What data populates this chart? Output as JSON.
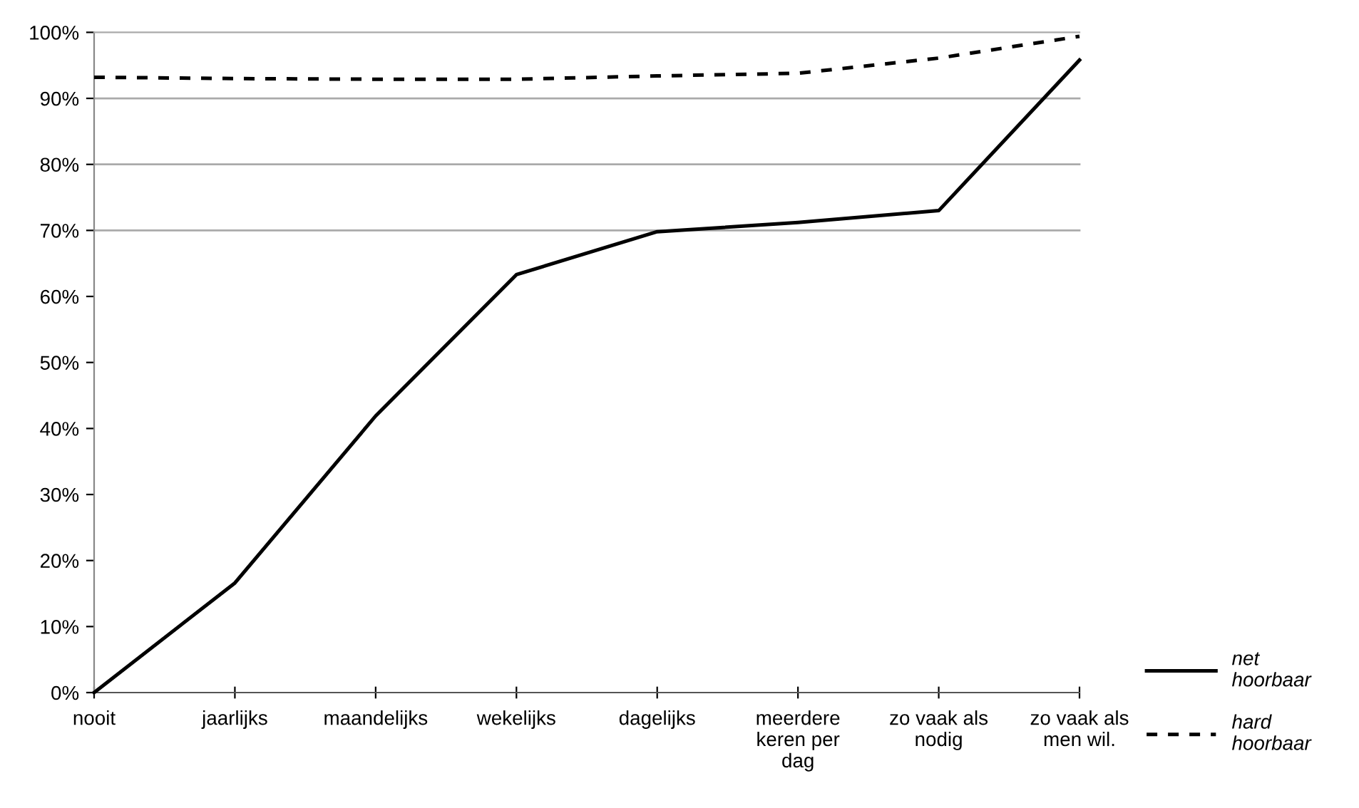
{
  "chart_data": {
    "type": "line",
    "categories": [
      "nooit",
      "jaarlijks",
      "maandelijks",
      "wekelijks",
      "dagelijks",
      "meerdere keren per dag",
      "zo vaak als nodig",
      "zo vaak als men wil."
    ],
    "series": [
      {
        "name": "net hoorbaar",
        "color": "#000000",
        "line_style": "solid",
        "values": [
          0,
          16.6,
          41.9,
          63.3,
          69.8,
          71.2,
          73.0,
          95.8
        ]
      },
      {
        "name": "hard hoorbaar",
        "color": "#000000",
        "line_style": "dotted",
        "values": [
          93.2,
          93.0,
          92.9,
          92.9,
          93.4,
          93.8,
          96.1,
          99.4
        ]
      }
    ],
    "ylim": [
      0,
      100
    ],
    "yticks": [
      {
        "value": 0,
        "label": "0%"
      },
      {
        "value": 10,
        "label": "10%"
      },
      {
        "value": 20,
        "label": "20%"
      },
      {
        "value": 30,
        "label": "30%"
      },
      {
        "value": 40,
        "label": "40%"
      },
      {
        "value": 50,
        "label": "50%"
      },
      {
        "value": 60,
        "label": "60%"
      },
      {
        "value": 70,
        "label": "70%"
      },
      {
        "value": 80,
        "label": "80%"
      },
      {
        "value": 90,
        "label": "90%"
      },
      {
        "value": 100,
        "label": "100%"
      }
    ],
    "ref_lines": [
      {
        "axis": "y",
        "value": 70,
        "color": "#aaaaaa"
      },
      {
        "axis": "y",
        "value": 80,
        "color": "#aaaaaa"
      },
      {
        "axis": "y",
        "value": 90,
        "color": "#aaaaaa"
      }
    ],
    "grid": false,
    "legend": "right",
    "marker": "none"
  }
}
